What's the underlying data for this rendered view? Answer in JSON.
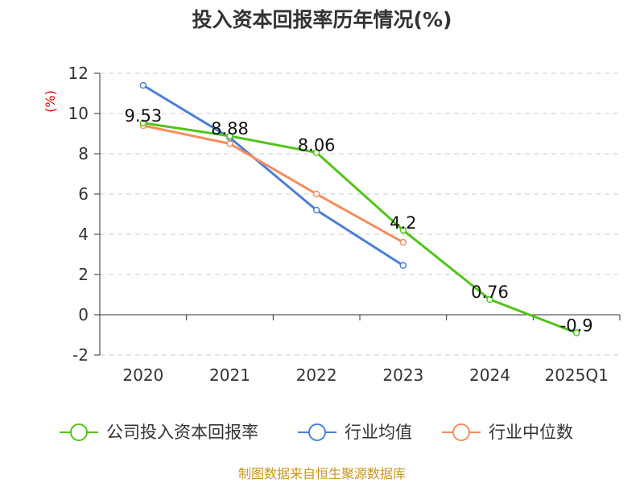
{
  "chart_data": {
    "type": "line",
    "title": "投入资本回报率历年情况(%)",
    "ylabel": "(%)",
    "categories": [
      "2020",
      "2021",
      "2022",
      "2023",
      "2024",
      "2025Q1"
    ],
    "ylim": [
      -2,
      12
    ],
    "yticks": [
      -2,
      0,
      2,
      4,
      6,
      8,
      10,
      12
    ],
    "grid": true,
    "legend_position": "bottom",
    "series": [
      {
        "name": "公司投入资本回报率",
        "color": "#52c41a",
        "values": [
          9.53,
          8.88,
          8.06,
          4.2,
          0.76,
          -0.9
        ],
        "labels": [
          "9.53",
          "8.88",
          "8.06",
          "4.2",
          "0.76",
          "-0.9"
        ]
      },
      {
        "name": "行业均值",
        "color": "#4a7fd8",
        "values": [
          11.4,
          8.8,
          5.2,
          2.45,
          null,
          null
        ]
      },
      {
        "name": "行业中位数",
        "color": "#f78c5a",
        "values": [
          9.4,
          8.5,
          6.0,
          3.6,
          null,
          null
        ]
      }
    ]
  },
  "source": "制图数据来自恒生聚源数据库"
}
